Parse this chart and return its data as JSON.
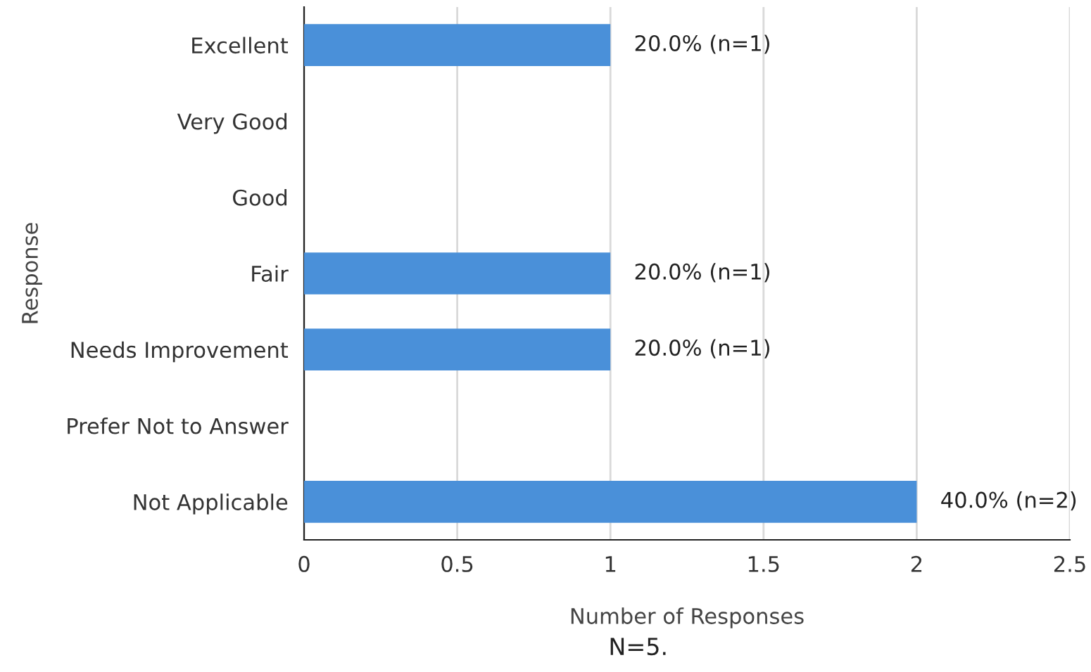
{
  "chart_data": {
    "type": "bar",
    "orientation": "horizontal",
    "categories": [
      "Excellent",
      "Very Good",
      "Good",
      "Fair",
      "Needs Improvement",
      "Prefer Not to Answer",
      "Not Applicable"
    ],
    "values": [
      1,
      0,
      0,
      1,
      1,
      0,
      2
    ],
    "value_labels": [
      "20.0% (n=1)",
      null,
      null,
      "20.0% (n=1)",
      "20.0% (n=1)",
      null,
      "40.0% (n=2)"
    ],
    "color": "#4a90d9",
    "xlabel": "Number of Responses",
    "ylabel": "Response",
    "xlim": [
      0,
      2.5
    ],
    "xticks": [
      0,
      0.5,
      1,
      1.5,
      2,
      2.5
    ],
    "grid": "x",
    "legend": false,
    "annotations": [
      "N=5."
    ]
  }
}
